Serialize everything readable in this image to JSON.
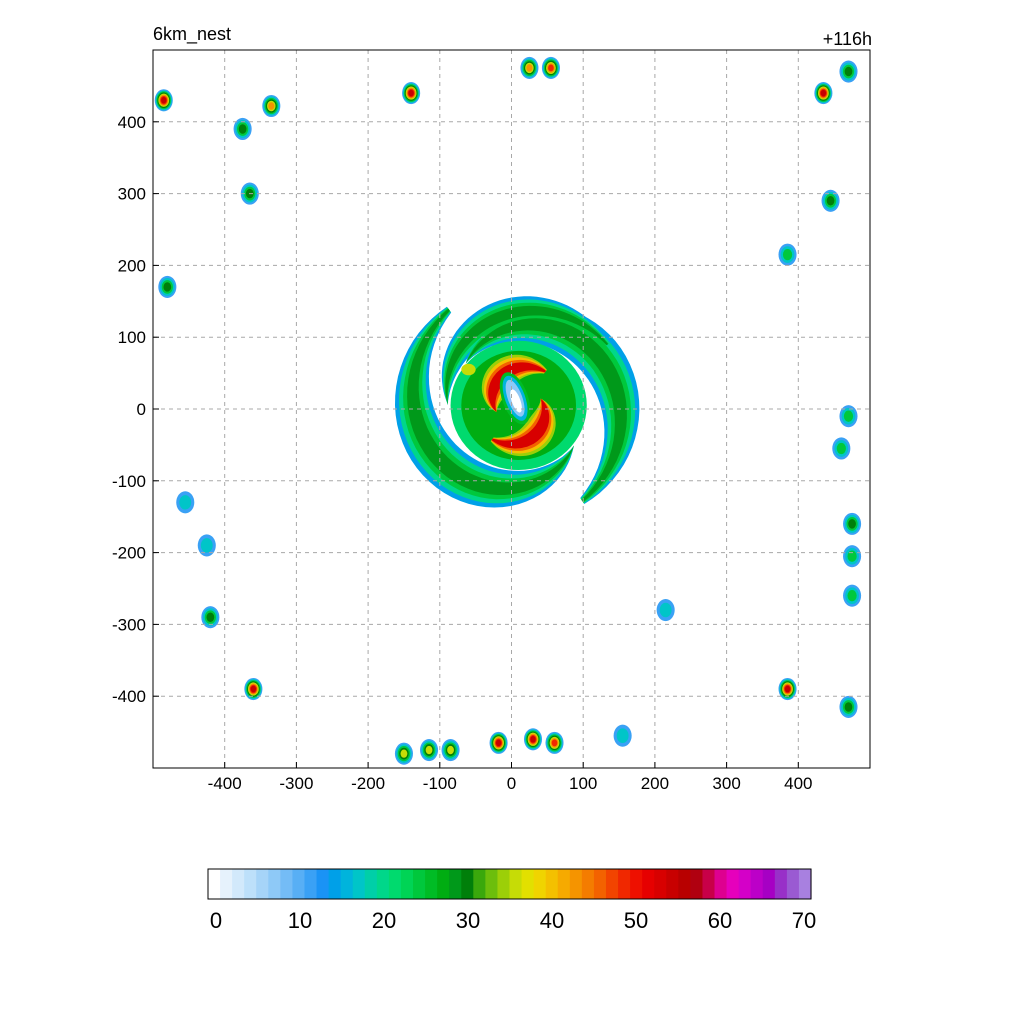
{
  "header": {
    "left_title": "6km_nest",
    "right_title": "+116h"
  },
  "chart_data": {
    "type": "heatmap",
    "title": "",
    "xlabel": "",
    "ylabel": "",
    "xlim": [
      -500,
      500
    ],
    "ylim": [
      -500,
      500
    ],
    "xticks": [
      -400,
      -300,
      -200,
      -100,
      0,
      100,
      200,
      300,
      400
    ],
    "yticks": [
      -400,
      -300,
      -200,
      -100,
      0,
      100,
      200,
      300,
      400
    ],
    "grid": true,
    "storm": {
      "center": [
        10,
        5
      ],
      "eye_center": [
        5,
        15
      ],
      "peak_value": 55
    },
    "cells": [
      {
        "x": -485,
        "y": 430,
        "v": 55
      },
      {
        "x": -335,
        "y": 422,
        "v": 42
      },
      {
        "x": -140,
        "y": 440,
        "v": 55
      },
      {
        "x": 25,
        "y": 475,
        "v": 45
      },
      {
        "x": 55,
        "y": 475,
        "v": 48
      },
      {
        "x": 435,
        "y": 440,
        "v": 55
      },
      {
        "x": 470,
        "y": 470,
        "v": 30
      },
      {
        "x": -375,
        "y": 390,
        "v": 30
      },
      {
        "x": -365,
        "y": 300,
        "v": 30
      },
      {
        "x": 445,
        "y": 290,
        "v": 30
      },
      {
        "x": 385,
        "y": 215,
        "v": 25
      },
      {
        "x": -480,
        "y": 170,
        "v": 30
      },
      {
        "x": 470,
        "y": -10,
        "v": 28
      },
      {
        "x": 460,
        "y": -55,
        "v": 25
      },
      {
        "x": 475,
        "y": -160,
        "v": 30
      },
      {
        "x": 475,
        "y": -205,
        "v": 28
      },
      {
        "x": 475,
        "y": -260,
        "v": 28
      },
      {
        "x": -455,
        "y": -130,
        "v": 22
      },
      {
        "x": -425,
        "y": -190,
        "v": 22
      },
      {
        "x": -420,
        "y": -290,
        "v": 30
      },
      {
        "x": -360,
        "y": -390,
        "v": 55
      },
      {
        "x": 385,
        "y": -390,
        "v": 55
      },
      {
        "x": 470,
        "y": -415,
        "v": 30
      },
      {
        "x": -150,
        "y": -480,
        "v": 40
      },
      {
        "x": -115,
        "y": -475,
        "v": 40
      },
      {
        "x": -85,
        "y": -475,
        "v": 40
      },
      {
        "x": -18,
        "y": -465,
        "v": 55
      },
      {
        "x": 30,
        "y": -460,
        "v": 55
      },
      {
        "x": 60,
        "y": -465,
        "v": 50
      },
      {
        "x": 155,
        "y": -455,
        "v": 22
      },
      {
        "x": 215,
        "y": -280,
        "v": 18
      }
    ]
  },
  "colorbar": {
    "ticks": [
      "0",
      "10",
      "20",
      "30",
      "40",
      "50",
      "60",
      "70"
    ],
    "colors": [
      "#ffffff",
      "#e6f2fc",
      "#d2e9fb",
      "#bde0fa",
      "#a6d4f8",
      "#8ec9f7",
      "#74bcf6",
      "#58aff5",
      "#3aa1f5",
      "#1a93f5",
      "#00a0e8",
      "#00b4dc",
      "#00c5c8",
      "#00cfa8",
      "#00d78a",
      "#00da6e",
      "#00d455",
      "#00c83c",
      "#00bc25",
      "#00ad12",
      "#00991a",
      "#007f0a",
      "#3aa80c",
      "#6cbe0c",
      "#9ccf08",
      "#c6dc06",
      "#e2e000",
      "#f0d400",
      "#f4c000",
      "#f6aa00",
      "#f59400",
      "#f47c00",
      "#f36200",
      "#f24400",
      "#f02800",
      "#ee1000",
      "#e60000",
      "#d80000",
      "#c80000",
      "#b80000",
      "#b00010",
      "#c80048",
      "#de0090",
      "#e600bc",
      "#d400c8",
      "#bc00c8",
      "#a600c4",
      "#9830c8",
      "#9a5ad2",
      "#a880e0"
    ]
  }
}
